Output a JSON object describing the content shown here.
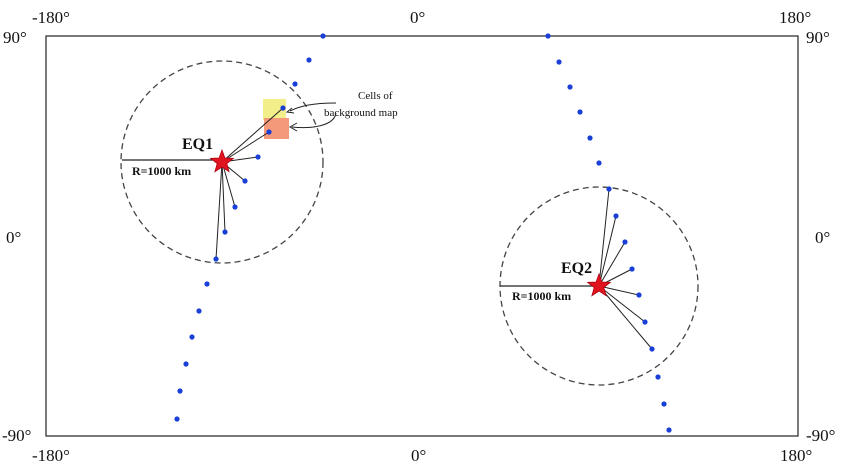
{
  "axes": {
    "top_lon": [
      "-180°",
      "0°",
      "180°"
    ],
    "bottom_lon": [
      "-180°",
      "0°",
      "180°"
    ],
    "left_lat": [
      "90°",
      "0°",
      "-90°"
    ],
    "right_lat": [
      "90°",
      "0°",
      "-90°"
    ]
  },
  "annotation": {
    "line1": "Cells of",
    "line2": "background map"
  },
  "events": [
    {
      "label": "EQ1",
      "radius_label": "R=1000 km"
    },
    {
      "label": "EQ2",
      "radius_label": "R=1000 km"
    }
  ],
  "colors": {
    "station": "#1a3fd6",
    "star": "#e0141e",
    "cell_yellow": "#f2ee8a",
    "cell_orange": "#f4997a",
    "circle": "#444444"
  }
}
